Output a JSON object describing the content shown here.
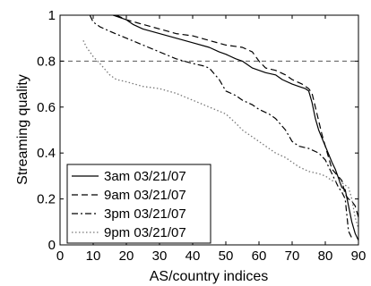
{
  "chart_data": {
    "type": "line",
    "title": "",
    "xlabel": "AS/country indices",
    "ylabel": "Streaming quality",
    "xlim": [
      0,
      90
    ],
    "ylim": [
      0,
      1
    ],
    "xticks": [
      0,
      10,
      20,
      30,
      40,
      50,
      60,
      70,
      80,
      90
    ],
    "yticks": [
      0,
      0.2,
      0.4,
      0.6,
      0.8,
      1
    ],
    "ytick_labels": [
      "0",
      "0.2",
      "0.4",
      "0.6",
      "0.8",
      "1"
    ],
    "grid": false,
    "legend": "bottom-left",
    "reference_lines": [
      {
        "axis": "y",
        "value": 0.8,
        "style": "dashed",
        "color": "#555555"
      }
    ],
    "series": [
      {
        "name": "3am 03/21/07",
        "style": "solid",
        "color": "#000000",
        "x": [
          16,
          18,
          20,
          22,
          25,
          30,
          35,
          40,
          45,
          48,
          50,
          53,
          55,
          58,
          60,
          62,
          65,
          67,
          70,
          72,
          74,
          75,
          76,
          77,
          78,
          80,
          82,
          83,
          85,
          86,
          87,
          88,
          89,
          90
        ],
        "y": [
          1.0,
          0.99,
          0.98,
          0.96,
          0.94,
          0.92,
          0.9,
          0.88,
          0.86,
          0.84,
          0.83,
          0.81,
          0.8,
          0.77,
          0.76,
          0.75,
          0.74,
          0.72,
          0.7,
          0.69,
          0.68,
          0.67,
          0.62,
          0.55,
          0.5,
          0.43,
          0.36,
          0.33,
          0.25,
          0.24,
          0.17,
          0.1,
          0.05,
          0.02
        ]
      },
      {
        "name": "9am 03/21/07",
        "style": "dashed",
        "color": "#000000",
        "x": [
          17,
          20,
          25,
          30,
          35,
          40,
          45,
          50,
          55,
          58,
          60,
          62,
          65,
          68,
          70,
          73,
          75,
          76,
          77,
          78,
          79,
          80,
          82,
          85,
          86,
          87,
          88,
          89,
          90
        ],
        "y": [
          1.0,
          0.98,
          0.96,
          0.94,
          0.92,
          0.91,
          0.89,
          0.87,
          0.86,
          0.84,
          0.8,
          0.77,
          0.76,
          0.74,
          0.72,
          0.7,
          0.68,
          0.66,
          0.6,
          0.54,
          0.48,
          0.43,
          0.33,
          0.28,
          0.22,
          0.2,
          0.19,
          0.17,
          0.12
        ]
      },
      {
        "name": "3pm 03/21/07",
        "style": "dashdot",
        "color": "#000000",
        "x": [
          9,
          10,
          12,
          15,
          20,
          25,
          30,
          35,
          40,
          43,
          45,
          48,
          50,
          53,
          55,
          58,
          60,
          63,
          65,
          68,
          70,
          72,
          75,
          78,
          80,
          82,
          84,
          85,
          86,
          87,
          88
        ],
        "y": [
          1.0,
          0.97,
          0.95,
          0.93,
          0.9,
          0.87,
          0.84,
          0.81,
          0.79,
          0.78,
          0.77,
          0.72,
          0.67,
          0.65,
          0.63,
          0.61,
          0.59,
          0.57,
          0.55,
          0.5,
          0.45,
          0.43,
          0.42,
          0.4,
          0.37,
          0.31,
          0.25,
          0.23,
          0.2,
          0.06,
          0.03
        ]
      },
      {
        "name": "9pm 03/21/07",
        "style": "dotted",
        "color": "#777777",
        "x": [
          7,
          8,
          10,
          12,
          15,
          17,
          20,
          25,
          30,
          35,
          40,
          45,
          50,
          53,
          55,
          58,
          60,
          63,
          65,
          68,
          70,
          72,
          75,
          78,
          80,
          82,
          85,
          87,
          88,
          89,
          90
        ],
        "y": [
          0.89,
          0.86,
          0.82,
          0.79,
          0.74,
          0.72,
          0.71,
          0.69,
          0.68,
          0.66,
          0.63,
          0.6,
          0.57,
          0.53,
          0.5,
          0.47,
          0.45,
          0.42,
          0.4,
          0.38,
          0.36,
          0.34,
          0.32,
          0.31,
          0.3,
          0.28,
          0.27,
          0.25,
          0.2,
          0.12,
          0.07
        ]
      }
    ]
  }
}
